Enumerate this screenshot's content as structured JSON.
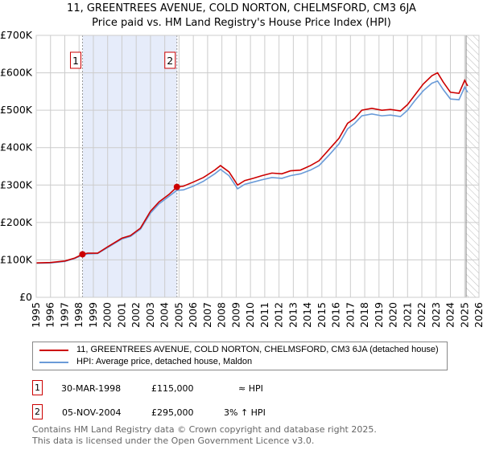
{
  "chart_data": {
    "type": "line",
    "title": "11, GREENTREES AVENUE, COLD NORTON, CHELMSFORD, CM3 6JA",
    "subtitle": "Price paid vs. HM Land Registry's House Price Index (HPI)",
    "xlim": [
      1995,
      2026
    ],
    "ylim": [
      0,
      700000
    ],
    "y_ticks": [
      0,
      100000,
      200000,
      300000,
      400000,
      500000,
      600000,
      700000
    ],
    "y_tick_labels": [
      "£0",
      "£100K",
      "£200K",
      "£300K",
      "£400K",
      "£500K",
      "£600K",
      "£700K"
    ],
    "x_ticks": [
      "1995",
      "1996",
      "1997",
      "1998",
      "1999",
      "2000",
      "2001",
      "2002",
      "2003",
      "2004",
      "2005",
      "2006",
      "2007",
      "2008",
      "2009",
      "2010",
      "2011",
      "2012",
      "2013",
      "2014",
      "2015",
      "2016",
      "2017",
      "2018",
      "2019",
      "2020",
      "2021",
      "2022",
      "2023",
      "2024",
      "2025",
      "2026"
    ],
    "grid": true,
    "series": [
      {
        "name": "11, GREENTREES AVENUE, COLD NORTON, CHELMSFORD, CM3 6JA (detached house)",
        "color": "#cc0000",
        "x": [
          1995,
          1996,
          1997,
          1997.7,
          1998.24,
          1998.6,
          1999.3,
          2000,
          2001,
          2001.6,
          2002.3,
          2003,
          2003.6,
          2004.3,
          2004.85,
          2005.3,
          2006,
          2006.7,
          2007.5,
          2007.9,
          2008.5,
          2009.1,
          2009.6,
          2010.2,
          2010.8,
          2011.5,
          2012.2,
          2012.8,
          2013.5,
          2014.2,
          2014.8,
          2015.5,
          2016.2,
          2016.8,
          2017.3,
          2017.8,
          2018.5,
          2019.2,
          2019.8,
          2020.5,
          2021,
          2021.5,
          2022.1,
          2022.7,
          2023.1,
          2023.5,
          2024,
          2024.6,
          2025,
          2025.2
        ],
        "y": [
          92000,
          93000,
          97000,
          105000,
          115000,
          118000,
          118000,
          135000,
          158000,
          165000,
          185000,
          230000,
          255000,
          275000,
          295000,
          297000,
          308000,
          320000,
          340000,
          352000,
          335000,
          300000,
          312000,
          318000,
          325000,
          332000,
          330000,
          338000,
          340000,
          352000,
          365000,
          395000,
          425000,
          465000,
          478000,
          500000,
          505000,
          500000,
          502000,
          498000,
          515000,
          540000,
          570000,
          592000,
          600000,
          575000,
          548000,
          545000,
          580000,
          565000
        ]
      },
      {
        "name": "HPI: Average price, detached house, Maldon",
        "color": "#6a9bd8",
        "x": [
          1995,
          1996,
          1997,
          1997.7,
          1998.24,
          1998.6,
          1999.3,
          2000,
          2001,
          2001.6,
          2002.3,
          2003,
          2003.6,
          2004.3,
          2004.85,
          2005.3,
          2006,
          2006.7,
          2007.5,
          2007.9,
          2008.5,
          2009.1,
          2009.6,
          2010.2,
          2010.8,
          2011.5,
          2012.2,
          2012.8,
          2013.5,
          2014.2,
          2014.8,
          2015.5,
          2016.2,
          2016.8,
          2017.3,
          2017.8,
          2018.5,
          2019.2,
          2019.8,
          2020.5,
          2021,
          2021.5,
          2022.1,
          2022.7,
          2023.1,
          2023.5,
          2024,
          2024.6,
          2025,
          2025.2
        ],
        "y": [
          91000,
          92000,
          96000,
          104000,
          113000,
          116000,
          117000,
          133000,
          156000,
          163000,
          182000,
          225000,
          250000,
          270000,
          286000,
          287000,
          297000,
          310000,
          330000,
          342000,
          325000,
          290000,
          302000,
          308000,
          314000,
          320000,
          318000,
          325000,
          330000,
          340000,
          352000,
          380000,
          410000,
          450000,
          465000,
          485000,
          490000,
          485000,
          487000,
          483000,
          500000,
          525000,
          552000,
          572000,
          578000,
          555000,
          530000,
          528000,
          562000,
          548000
        ]
      }
    ],
    "sales": [
      {
        "label": "1",
        "x": 1998.24,
        "price": 115000
      },
      {
        "label": "2",
        "x": 2004.85,
        "price": 295000
      }
    ],
    "shaded_between_sales": "#e6ecfa",
    "future_hatch_from": 2025.1
  },
  "legend": {
    "items": [
      "11, GREENTREES AVENUE, COLD NORTON, CHELMSFORD, CM3 6JA (detached house)",
      "HPI: Average price, detached house, Maldon"
    ]
  },
  "table": [
    {
      "num": "1",
      "date": "30-MAR-1998",
      "price": "£115,000",
      "hpi": "≈ HPI"
    },
    {
      "num": "2",
      "date": "05-NOV-2004",
      "price": "£295,000",
      "hpi": "3% ↑ HPI"
    }
  ],
  "footer": [
    "Contains HM Land Registry data © Crown copyright and database right 2025.",
    "This data is licensed under the Open Government Licence v3.0."
  ]
}
